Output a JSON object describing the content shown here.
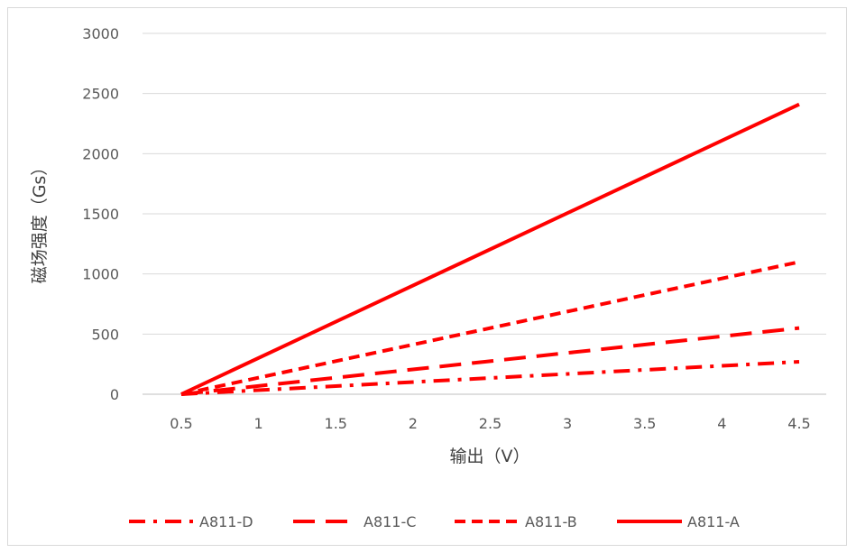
{
  "chart_data": {
    "type": "line",
    "xlabel": "输出（V）",
    "ylabel": "磁场强度（Gs）",
    "x": [
      0.5,
      4.5
    ],
    "x_ticks": [
      "0.5",
      "1",
      "1.5",
      "2",
      "2.5",
      "3",
      "3.5",
      "4",
      "4.5"
    ],
    "y_ticks": [
      "0",
      "500",
      "1000",
      "1500",
      "2000",
      "2500",
      "3000"
    ],
    "ylim": [
      0,
      3000
    ],
    "grid": true,
    "legend_position": "bottom",
    "series": [
      {
        "name": "A811-D",
        "values": [
          0,
          270
        ],
        "dash": "dash-dot",
        "color": "#ff0000"
      },
      {
        "name": "A811-C",
        "values": [
          0,
          550
        ],
        "dash": "long-dash",
        "color": "#ff0000"
      },
      {
        "name": "A811-B",
        "values": [
          0,
          1100
        ],
        "dash": "dash",
        "color": "#ff0000"
      },
      {
        "name": "A811-A",
        "values": [
          0,
          2410
        ],
        "dash": "solid",
        "color": "#ff0000"
      }
    ]
  }
}
